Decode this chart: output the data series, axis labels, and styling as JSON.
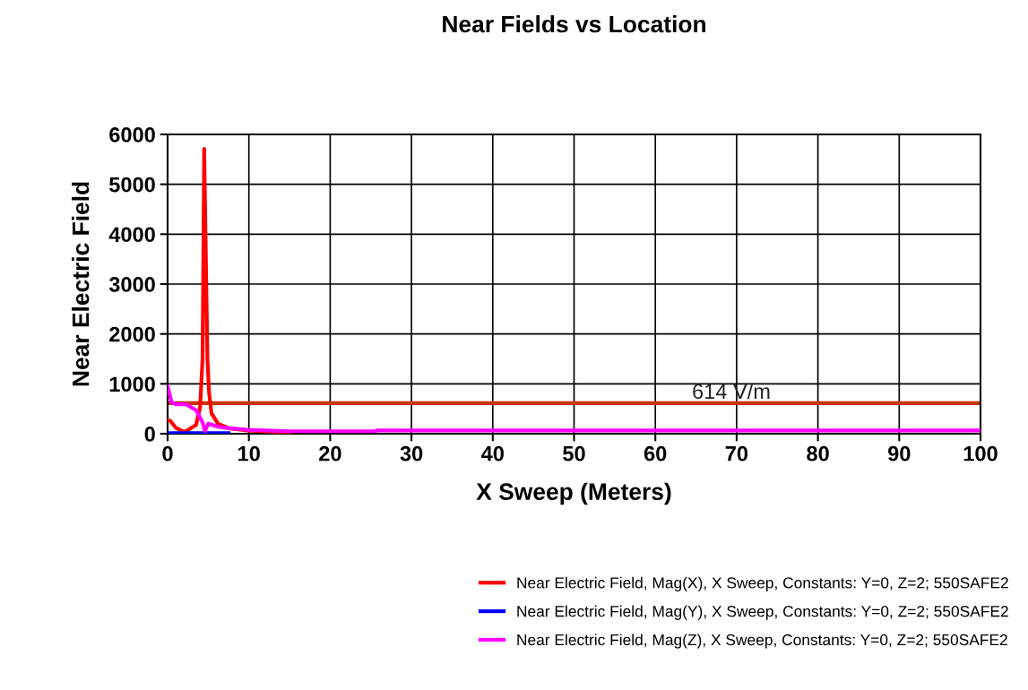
{
  "chart_data": {
    "type": "line",
    "title": "Near Fields vs Location",
    "xlabel": "X Sweep (Meters)",
    "ylabel": "Near Electric Field",
    "xlim": [
      0,
      100
    ],
    "xticks": [
      0,
      10,
      20,
      30,
      40,
      50,
      60,
      70,
      80,
      90,
      100
    ],
    "ylim": [
      0,
      6000
    ],
    "yticks": [
      0,
      1000,
      2000,
      3000,
      4000,
      5000,
      6000
    ],
    "grid": true,
    "legend": "bottom right",
    "marker": "none",
    "line_style": "solid",
    "ref_lines": [
      {
        "axis": "y",
        "value": 614,
        "label": "614 V/m",
        "color": "#cc3300"
      }
    ],
    "series": [
      {
        "name": "Near Electric Field, Mag(X), X Sweep, Constants: Y=0, Z=2; 550SAFE2",
        "color": "#ff0000",
        "x": [
          0,
          0.3,
          1.0,
          2.1,
          3.5,
          4.0,
          4.3,
          4.5,
          4.9,
          5.1,
          5.4,
          6.2,
          7.6,
          9.8,
          12,
          15
        ],
        "values": [
          265,
          265,
          120,
          35,
          175,
          535,
          1500,
          5710,
          1500,
          830,
          410,
          200,
          110,
          65,
          45,
          30
        ]
      },
      {
        "name": "Near Electric Field, Mag(Y), X Sweep, Constants: Y=0, Z=2; 550SAFE2",
        "color": "#0000ff",
        "x": [
          0,
          2,
          4,
          6,
          7.5
        ],
        "values": [
          10,
          10,
          10,
          10,
          10
        ]
      },
      {
        "name": "Near Electric Field, Mag(Z), X Sweep, Constants: Y=0, Z=2; 550SAFE2",
        "color": "#ff00ff",
        "x": [
          0,
          0.5,
          1.0,
          2.3,
          3.5,
          4.3,
          4.6,
          5.0,
          6.2,
          7.6,
          9.8,
          15,
          25.6,
          25.7,
          100
        ],
        "values": [
          950,
          625,
          590,
          590,
          470,
          230,
          50,
          200,
          140,
          110,
          80,
          50,
          50,
          65,
          65
        ]
      }
    ]
  }
}
